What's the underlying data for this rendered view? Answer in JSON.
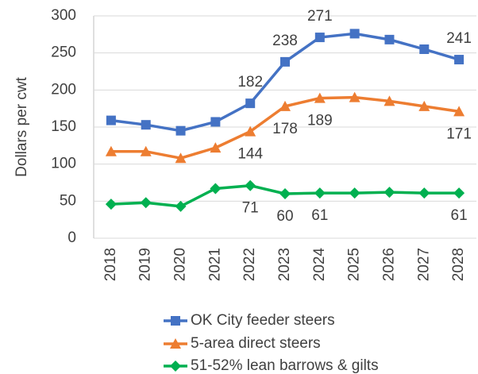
{
  "chart_data": {
    "type": "line",
    "y_label": "Dollars per cwt",
    "categories": [
      "2018",
      "2019",
      "2020",
      "2021",
      "2022",
      "2023",
      "2024",
      "2025",
      "2026",
      "2027",
      "2028"
    ],
    "series": [
      {
        "name": "OK City feeder steers",
        "color": "#4472c4",
        "marker": "square",
        "label_position": "above",
        "labeled": [
          4,
          5,
          6,
          10
        ],
        "values": [
          159,
          153,
          145,
          157,
          182,
          238,
          271,
          276,
          268,
          255,
          241
        ]
      },
      {
        "name": "5-area direct steers",
        "color": "#ed7d31",
        "marker": "triangle",
        "label_position": "below",
        "labeled": [
          4,
          5,
          6,
          10
        ],
        "values": [
          117,
          117,
          108,
          122,
          144,
          178,
          189,
          190,
          185,
          178,
          171
        ]
      },
      {
        "name": "51-52% lean barrows & gilts",
        "color": "#00b050",
        "marker": "diamond",
        "label_position": "below",
        "labeled": [
          4,
          5,
          6,
          10
        ],
        "values": [
          46,
          48,
          43,
          67,
          71,
          60,
          61,
          61,
          62,
          61,
          61
        ]
      }
    ],
    "ylim": [
      0,
      300
    ],
    "yticks": [
      0,
      50,
      100,
      150,
      200,
      250,
      300
    ],
    "grid": true,
    "legend": "bottom"
  }
}
